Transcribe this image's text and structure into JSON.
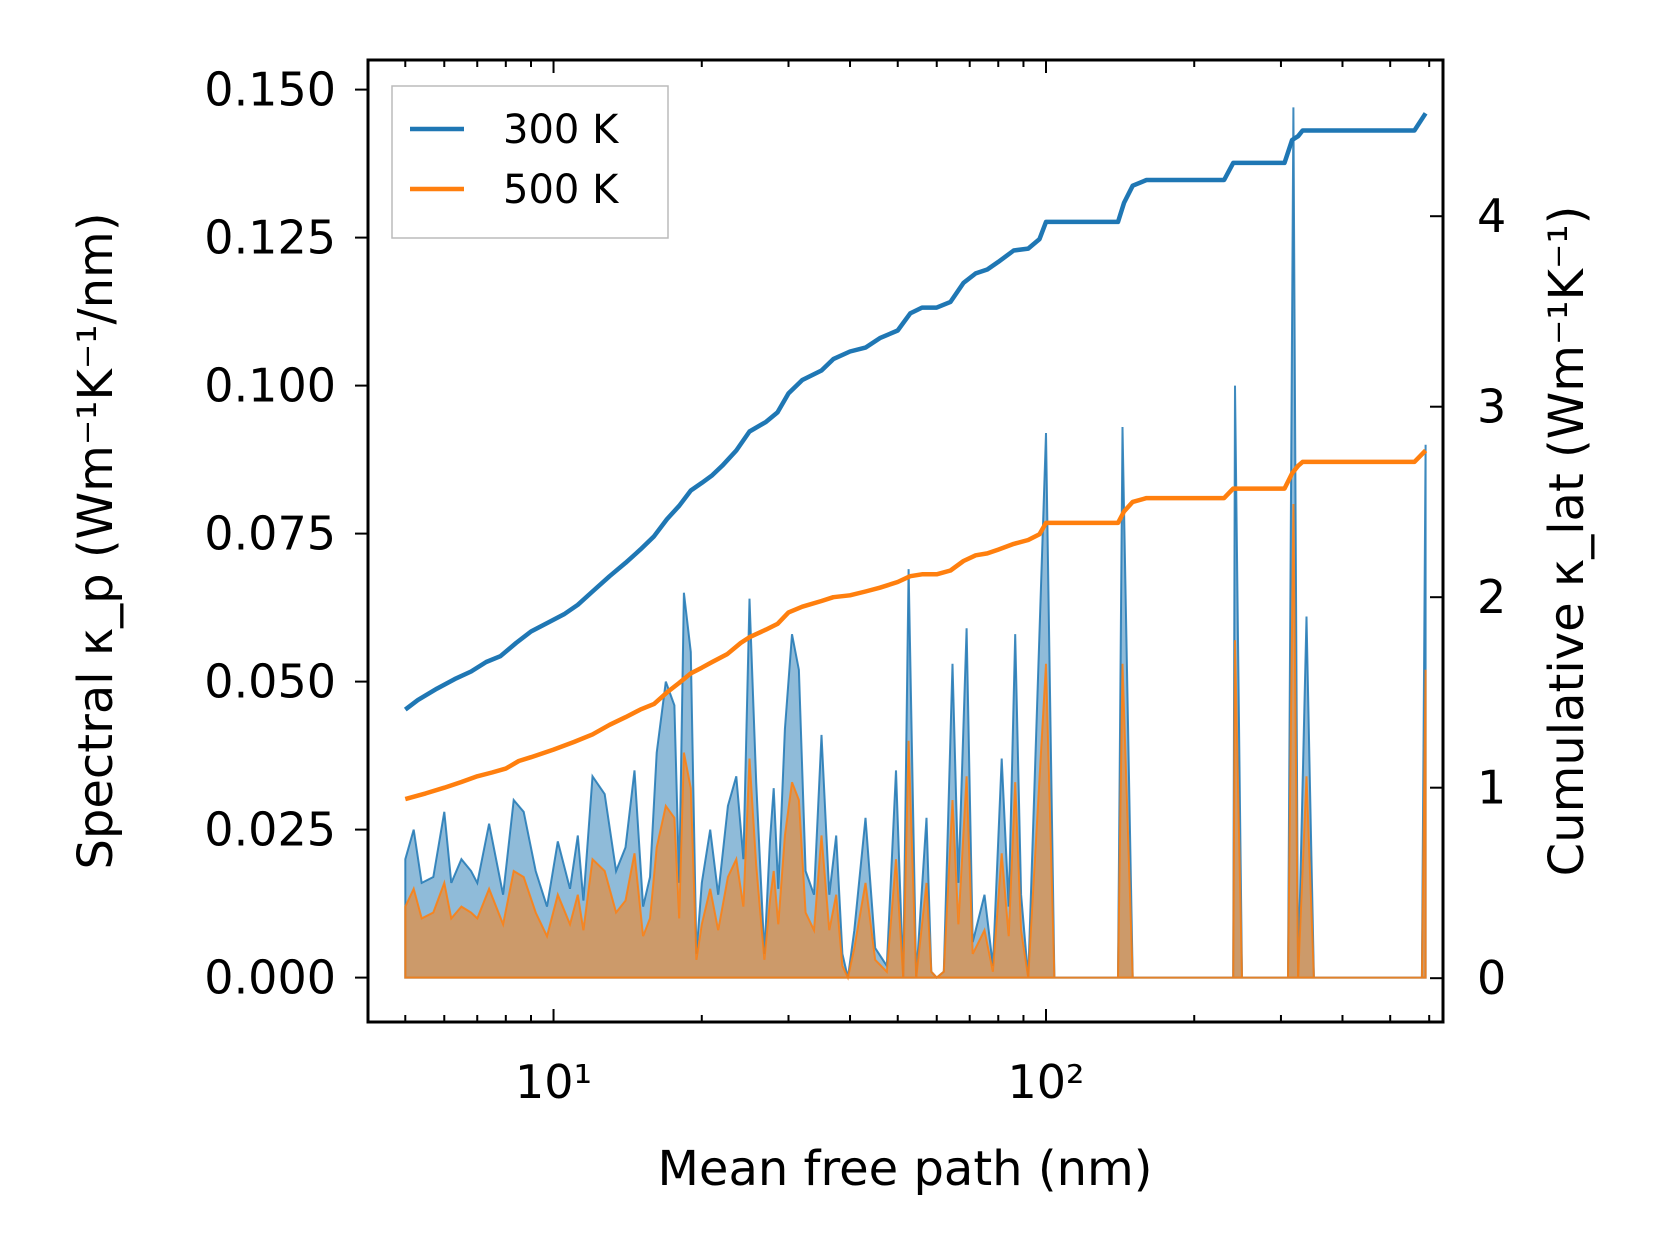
{
  "chart_data": {
    "type": "line",
    "title": "",
    "xlabel": "Mean free path (nm)",
    "ylabel_left": "Spectral κ_p (Wm⁻¹K⁻¹/nm)",
    "ylabel_right": "Cumulative κ_lat (Wm⁻¹K⁻¹)",
    "xscale": "log",
    "xlim": [
      4.2,
      640
    ],
    "ylim_left": [
      -0.0075,
      0.155
    ],
    "ylim_right": [
      -0.23,
      4.82
    ],
    "x_major_ticks": [
      10,
      100
    ],
    "x_major_tick_labels": [
      "10¹",
      "10²"
    ],
    "y_left_ticks": [
      0.0,
      0.025,
      0.05,
      0.075,
      0.1,
      0.125,
      0.15
    ],
    "y_left_tick_labels": [
      "0.000",
      "0.025",
      "0.050",
      "0.075",
      "0.100",
      "0.125",
      "0.150"
    ],
    "y_right_ticks": [
      0,
      1,
      2,
      3,
      4
    ],
    "y_right_tick_labels": [
      "0",
      "1",
      "2",
      "3",
      "4"
    ],
    "legend_position": "top-left",
    "series": [
      {
        "name": "300 K",
        "label": "300 K",
        "color": "#1f77b4",
        "spectral": [
          [
            5.0,
            0.02
          ],
          [
            5.2,
            0.025
          ],
          [
            5.4,
            0.016
          ],
          [
            5.7,
            0.017
          ],
          [
            6.0,
            0.028
          ],
          [
            6.2,
            0.016
          ],
          [
            6.5,
            0.02
          ],
          [
            6.8,
            0.018
          ],
          [
            7.0,
            0.016
          ],
          [
            7.4,
            0.026
          ],
          [
            7.9,
            0.014
          ],
          [
            8.3,
            0.03
          ],
          [
            8.7,
            0.028
          ],
          [
            9.2,
            0.018
          ],
          [
            9.7,
            0.012
          ],
          [
            10.2,
            0.023
          ],
          [
            10.8,
            0.015
          ],
          [
            11.2,
            0.024
          ],
          [
            11.5,
            0.013
          ],
          [
            12.0,
            0.034
          ],
          [
            12.7,
            0.031
          ],
          [
            13.4,
            0.018
          ],
          [
            14.0,
            0.022
          ],
          [
            14.6,
            0.035
          ],
          [
            15.2,
            0.012
          ],
          [
            15.7,
            0.017
          ],
          [
            16.2,
            0.038
          ],
          [
            16.9,
            0.05
          ],
          [
            17.6,
            0.046
          ],
          [
            18.0,
            0.016
          ],
          [
            18.4,
            0.065
          ],
          [
            19.0,
            0.055
          ],
          [
            19.5,
            0.004
          ],
          [
            20.0,
            0.016
          ],
          [
            20.8,
            0.025
          ],
          [
            21.6,
            0.014
          ],
          [
            22.6,
            0.029
          ],
          [
            23.5,
            0.034
          ],
          [
            24.3,
            0.02
          ],
          [
            25.0,
            0.064
          ],
          [
            25.8,
            0.033
          ],
          [
            26.8,
            0.004
          ],
          [
            27.5,
            0.023
          ],
          [
            28.0,
            0.032
          ],
          [
            28.6,
            0.015
          ],
          [
            29.5,
            0.042
          ],
          [
            30.5,
            0.058
          ],
          [
            31.5,
            0.052
          ],
          [
            32.5,
            0.018
          ],
          [
            33.8,
            0.014
          ],
          [
            35.0,
            0.041
          ],
          [
            36.3,
            0.014
          ],
          [
            37.5,
            0.024
          ],
          [
            38.6,
            0.004
          ],
          [
            39.6,
            0.0
          ],
          [
            40.8,
            0.008
          ],
          [
            43.0,
            0.027
          ],
          [
            45.0,
            0.005
          ],
          [
            47.5,
            0.002
          ],
          [
            49.6,
            0.035
          ],
          [
            51.3,
            0.0
          ],
          [
            52.6,
            0.069
          ],
          [
            54.5,
            0.0
          ],
          [
            57.2,
            0.027
          ],
          [
            58.5,
            0.001
          ],
          [
            60.0,
            0.0
          ],
          [
            62.0,
            0.001
          ],
          [
            64.6,
            0.053
          ],
          [
            66.4,
            0.016
          ],
          [
            69.0,
            0.059
          ],
          [
            71.0,
            0.006
          ],
          [
            75.0,
            0.014
          ],
          [
            78.0,
            0.002
          ],
          [
            81.3,
            0.037
          ],
          [
            84.0,
            0.012
          ],
          [
            86.6,
            0.058
          ],
          [
            89.0,
            0.014
          ],
          [
            92.0,
            0.0
          ],
          [
            100.0,
            0.092
          ],
          [
            104.0,
            0.0
          ],
          [
            140.0,
            0.0
          ],
          [
            143.0,
            0.093
          ],
          [
            150.0,
            0.0
          ],
          [
            240.0,
            0.0
          ],
          [
            242.0,
            0.1
          ],
          [
            250.0,
            0.0
          ],
          [
            310.0,
            0.0
          ],
          [
            318.0,
            0.147
          ],
          [
            325.0,
            0.0
          ],
          [
            338.0,
            0.061
          ],
          [
            350.0,
            0.0
          ],
          [
            580.0,
            0.0
          ],
          [
            590.0,
            0.09
          ]
        ],
        "cumulative": [
          [
            5.0,
            1.41
          ],
          [
            5.3,
            1.46
          ],
          [
            5.8,
            1.52
          ],
          [
            6.3,
            1.57
          ],
          [
            6.8,
            1.61
          ],
          [
            7.3,
            1.66
          ],
          [
            7.8,
            1.69
          ],
          [
            8.4,
            1.76
          ],
          [
            9.0,
            1.82
          ],
          [
            9.8,
            1.87
          ],
          [
            10.5,
            1.91
          ],
          [
            11.2,
            1.96
          ],
          [
            12.0,
            2.03
          ],
          [
            13.0,
            2.11
          ],
          [
            14.0,
            2.18
          ],
          [
            15.0,
            2.25
          ],
          [
            16.0,
            2.32
          ],
          [
            17.0,
            2.41
          ],
          [
            18.0,
            2.48
          ],
          [
            19.0,
            2.56
          ],
          [
            20.0,
            2.6
          ],
          [
            21.0,
            2.64
          ],
          [
            22.0,
            2.69
          ],
          [
            23.5,
            2.77
          ],
          [
            25.0,
            2.87
          ],
          [
            27.0,
            2.92
          ],
          [
            28.5,
            2.97
          ],
          [
            30.0,
            3.07
          ],
          [
            32.0,
            3.14
          ],
          [
            35.0,
            3.19
          ],
          [
            37.0,
            3.25
          ],
          [
            40.0,
            3.29
          ],
          [
            43.0,
            3.31
          ],
          [
            46.0,
            3.36
          ],
          [
            50.0,
            3.4
          ],
          [
            53.0,
            3.49
          ],
          [
            56.0,
            3.52
          ],
          [
            60.0,
            3.52
          ],
          [
            64.0,
            3.55
          ],
          [
            68.0,
            3.65
          ],
          [
            72.0,
            3.7
          ],
          [
            76.0,
            3.72
          ],
          [
            80.0,
            3.76
          ],
          [
            86.0,
            3.82
          ],
          [
            92.0,
            3.83
          ],
          [
            97.0,
            3.88
          ],
          [
            100.0,
            3.97
          ],
          [
            140.0,
            3.97
          ],
          [
            144.0,
            4.07
          ],
          [
            150.0,
            4.16
          ],
          [
            160.0,
            4.19
          ],
          [
            230.0,
            4.19
          ],
          [
            240.0,
            4.28
          ],
          [
            305.0,
            4.28
          ],
          [
            316.0,
            4.4
          ],
          [
            325.0,
            4.42
          ],
          [
            332.0,
            4.45
          ],
          [
            560.0,
            4.45
          ],
          [
            590.0,
            4.54
          ]
        ]
      },
      {
        "name": "500 K",
        "label": "500 K",
        "color": "#ff7f0e",
        "spectral": [
          [
            5.0,
            0.012
          ],
          [
            5.2,
            0.015
          ],
          [
            5.4,
            0.01
          ],
          [
            5.7,
            0.011
          ],
          [
            6.0,
            0.016
          ],
          [
            6.2,
            0.01
          ],
          [
            6.5,
            0.012
          ],
          [
            6.8,
            0.011
          ],
          [
            7.0,
            0.01
          ],
          [
            7.4,
            0.015
          ],
          [
            7.9,
            0.009
          ],
          [
            8.3,
            0.018
          ],
          [
            8.7,
            0.017
          ],
          [
            9.2,
            0.011
          ],
          [
            9.7,
            0.007
          ],
          [
            10.2,
            0.014
          ],
          [
            10.8,
            0.009
          ],
          [
            11.2,
            0.014
          ],
          [
            11.5,
            0.008
          ],
          [
            12.0,
            0.02
          ],
          [
            12.7,
            0.018
          ],
          [
            13.4,
            0.011
          ],
          [
            14.0,
            0.013
          ],
          [
            14.6,
            0.021
          ],
          [
            15.2,
            0.007
          ],
          [
            15.7,
            0.01
          ],
          [
            16.2,
            0.022
          ],
          [
            16.9,
            0.029
          ],
          [
            17.6,
            0.027
          ],
          [
            18.0,
            0.01
          ],
          [
            18.4,
            0.038
          ],
          [
            19.0,
            0.032
          ],
          [
            19.5,
            0.003
          ],
          [
            20.0,
            0.009
          ],
          [
            20.8,
            0.015
          ],
          [
            21.6,
            0.008
          ],
          [
            22.6,
            0.017
          ],
          [
            23.5,
            0.02
          ],
          [
            24.3,
            0.012
          ],
          [
            25.0,
            0.037
          ],
          [
            25.8,
            0.019
          ],
          [
            26.8,
            0.003
          ],
          [
            27.5,
            0.013
          ],
          [
            28.0,
            0.018
          ],
          [
            28.6,
            0.009
          ],
          [
            29.5,
            0.024
          ],
          [
            30.5,
            0.033
          ],
          [
            31.5,
            0.03
          ],
          [
            32.5,
            0.011
          ],
          [
            33.8,
            0.008
          ],
          [
            35.0,
            0.024
          ],
          [
            36.3,
            0.008
          ],
          [
            37.5,
            0.014
          ],
          [
            38.6,
            0.002
          ],
          [
            39.6,
            0.0
          ],
          [
            40.8,
            0.005
          ],
          [
            43.0,
            0.016
          ],
          [
            45.0,
            0.003
          ],
          [
            47.5,
            0.001
          ],
          [
            49.6,
            0.02
          ],
          [
            51.3,
            0.0
          ],
          [
            52.6,
            0.04
          ],
          [
            54.5,
            0.0
          ],
          [
            57.2,
            0.016
          ],
          [
            58.5,
            0.001
          ],
          [
            60.0,
            0.0
          ],
          [
            62.0,
            0.001
          ],
          [
            64.6,
            0.03
          ],
          [
            66.4,
            0.009
          ],
          [
            69.0,
            0.034
          ],
          [
            71.0,
            0.004
          ],
          [
            75.0,
            0.008
          ],
          [
            78.0,
            0.001
          ],
          [
            81.3,
            0.021
          ],
          [
            84.0,
            0.007
          ],
          [
            86.6,
            0.033
          ],
          [
            89.0,
            0.008
          ],
          [
            92.0,
            0.0
          ],
          [
            100.0,
            0.053
          ],
          [
            104.0,
            0.0
          ],
          [
            140.0,
            0.0
          ],
          [
            143.0,
            0.053
          ],
          [
            150.0,
            0.0
          ],
          [
            240.0,
            0.0
          ],
          [
            242.0,
            0.057
          ],
          [
            250.0,
            0.0
          ],
          [
            310.0,
            0.0
          ],
          [
            318.0,
            0.08
          ],
          [
            325.0,
            0.0
          ],
          [
            338.0,
            0.034
          ],
          [
            350.0,
            0.0
          ],
          [
            580.0,
            0.0
          ],
          [
            590.0,
            0.052
          ]
        ],
        "cumulative": [
          [
            5.0,
            0.94
          ],
          [
            5.5,
            0.97
          ],
          [
            6.0,
            1.0
          ],
          [
            6.5,
            1.03
          ],
          [
            7.0,
            1.06
          ],
          [
            7.5,
            1.08
          ],
          [
            8.0,
            1.1
          ],
          [
            8.5,
            1.14
          ],
          [
            9.0,
            1.16
          ],
          [
            10.0,
            1.2
          ],
          [
            11.0,
            1.24
          ],
          [
            12.0,
            1.28
          ],
          [
            13.0,
            1.33
          ],
          [
            14.0,
            1.37
          ],
          [
            15.0,
            1.41
          ],
          [
            16.0,
            1.44
          ],
          [
            17.0,
            1.5
          ],
          [
            18.0,
            1.55
          ],
          [
            19.0,
            1.6
          ],
          [
            20.0,
            1.63
          ],
          [
            21.0,
            1.66
          ],
          [
            22.5,
            1.7
          ],
          [
            24.0,
            1.76
          ],
          [
            25.0,
            1.79
          ],
          [
            27.0,
            1.83
          ],
          [
            28.5,
            1.86
          ],
          [
            30.0,
            1.92
          ],
          [
            32.0,
            1.95
          ],
          [
            35.0,
            1.98
          ],
          [
            37.0,
            2.0
          ],
          [
            40.0,
            2.01
          ],
          [
            43.0,
            2.03
          ],
          [
            46.0,
            2.05
          ],
          [
            50.0,
            2.08
          ],
          [
            53.0,
            2.11
          ],
          [
            56.0,
            2.12
          ],
          [
            60.0,
            2.12
          ],
          [
            64.0,
            2.14
          ],
          [
            68.0,
            2.19
          ],
          [
            72.0,
            2.22
          ],
          [
            76.0,
            2.23
          ],
          [
            80.0,
            2.25
          ],
          [
            86.0,
            2.28
          ],
          [
            92.0,
            2.3
          ],
          [
            97.0,
            2.33
          ],
          [
            100.0,
            2.39
          ],
          [
            140.0,
            2.39
          ],
          [
            144.0,
            2.45
          ],
          [
            150.0,
            2.5
          ],
          [
            160.0,
            2.52
          ],
          [
            230.0,
            2.52
          ],
          [
            240.0,
            2.57
          ],
          [
            305.0,
            2.57
          ],
          [
            316.0,
            2.65
          ],
          [
            325.0,
            2.69
          ],
          [
            332.0,
            2.71
          ],
          [
            560.0,
            2.71
          ],
          [
            590.0,
            2.77
          ]
        ]
      }
    ]
  }
}
